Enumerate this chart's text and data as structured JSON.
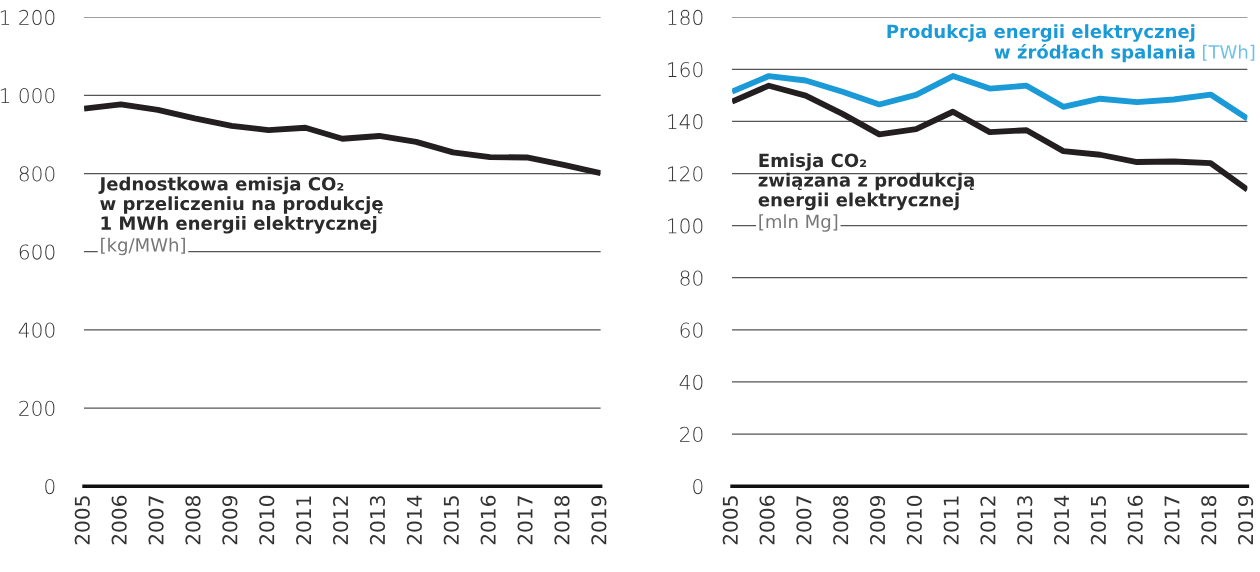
{
  "chart_data": [
    {
      "type": "line",
      "categories": [
        "2005",
        "2006",
        "2007",
        "2008",
        "2009",
        "2010",
        "2011",
        "2012",
        "2013",
        "2014",
        "2015",
        "2016",
        "2017",
        "2018",
        "2019"
      ],
      "series": [
        {
          "name": "Jednostkowa emisja CO₂\nw przeliczeniu na produkcję\n1 MWh energii elektrycznej",
          "color": "#231f20",
          "values": [
            966,
            977,
            963,
            941,
            922,
            911,
            917,
            889,
            896,
            881,
            854,
            842,
            841,
            822,
            801
          ]
        }
      ],
      "annotations": [
        "[kg/MWh]"
      ],
      "ylim": [
        0,
        1200
      ],
      "yticks": [
        0,
        200,
        400,
        600,
        800,
        {
          "value": 1000,
          "label": "1 000"
        },
        {
          "value": 1200,
          "label": "1 200"
        }
      ],
      "grid": "y",
      "legend": false,
      "marker": "none",
      "line_style": "solid"
    },
    {
      "type": "line",
      "categories": [
        "2005",
        "2006",
        "2007",
        "2008",
        "2009",
        "2010",
        "2011",
        "2012",
        "2013",
        "2014",
        "2015",
        "2016",
        "2017",
        "2018",
        "2019"
      ],
      "series": [
        {
          "name": "Produkcja energii elektrycznej\nw źródłach spalania",
          "color": "#1a9ad6",
          "values": [
            151.4,
            157.4,
            155.7,
            151.4,
            146.5,
            150.2,
            157.4,
            152.6,
            153.7,
            145.6,
            148.7,
            147.4,
            148.4,
            150.3,
            141.1
          ]
        },
        {
          "name": "Emisja CO₂\nzwiązana z produkcją\nenergii elektrycznej",
          "color": "#231f20",
          "values": [
            147.6,
            153.7,
            149.9,
            142.9,
            135.0,
            137.0,
            143.7,
            135.9,
            136.6,
            128.6,
            127.2,
            124.4,
            124.6,
            124.0,
            113.8
          ]
        }
      ],
      "annotations": [
        "[TWh]",
        "[mln Mg]"
      ],
      "ylim": [
        0,
        180
      ],
      "yticks": [
        0,
        20,
        40,
        60,
        80,
        100,
        120,
        140,
        160,
        180
      ],
      "grid": "y",
      "legend": false,
      "marker": "none",
      "line_style": "solid"
    }
  ]
}
